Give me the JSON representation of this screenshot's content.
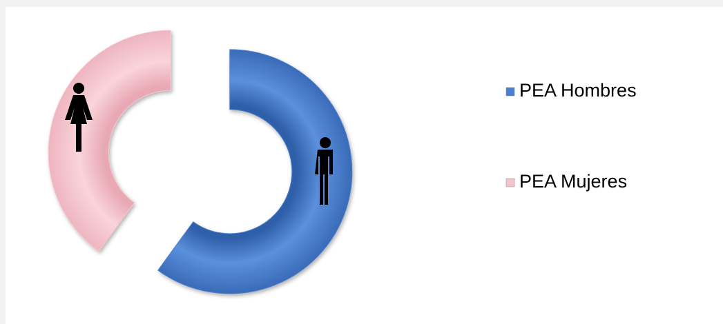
{
  "chart_data": {
    "type": "doughnut",
    "categories": [
      "PEA Hombres",
      "PEA Mujeres"
    ],
    "values": [
      60,
      40
    ],
    "colors": [
      "#4a7fcf",
      "#f5c3cc"
    ],
    "legend": "right"
  }
}
